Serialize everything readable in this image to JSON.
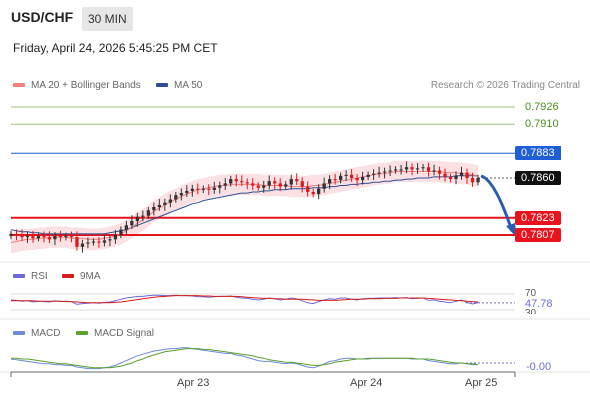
{
  "header": {
    "symbol": "USD/CHF",
    "interval": "30 MIN",
    "datetime": "Friday, April 24, 2026 5:45:25 PM CET"
  },
  "legend": {
    "ma20": "MA 20 + Bollinger Bands",
    "ma50": "MA 50",
    "credit": "Research © 2026 Trading Central"
  },
  "colors": {
    "ma20": "#f08080",
    "ma50": "#2f4f8f",
    "bollinger_fill": "#fadadd",
    "resistance_green": "#9bc27a",
    "pivot_blue": "#1f5fd6",
    "support_red": "#e8131c",
    "up_candle": "#333333",
    "down_candle": "#d81b1b",
    "rsi": "#6b6bd6",
    "rsi_ma": "#d81b1b",
    "macd": "#6b8bd6",
    "macd_signal": "#5aa02c"
  },
  "price_levels": [
    {
      "value": 0.7926,
      "label": "0.7926",
      "kind": "green"
    },
    {
      "value": 0.791,
      "label": "0.7910",
      "kind": "green"
    },
    {
      "value": 0.7883,
      "label": "0.7883",
      "kind": "blue"
    },
    {
      "value": 0.786,
      "label": "0.7860",
      "kind": "dark"
    },
    {
      "value": 0.7823,
      "label": "0.7823",
      "kind": "red"
    },
    {
      "value": 0.7807,
      "label": "0.7807",
      "kind": "red"
    }
  ],
  "rsi": {
    "label": "RSI",
    "ma_label": "9MA",
    "levels": [
      "70",
      "30"
    ],
    "current": "47.78"
  },
  "macd": {
    "label": "MACD",
    "signal_label": "MACD Signal",
    "current": "-0.00"
  },
  "x_axis": {
    "ticks": [
      "Apr 23",
      "Apr 24",
      "Apr 25"
    ]
  },
  "chart_data": {
    "type": "candlestick",
    "title": "USD/CHF",
    "ylim": [
      0.78,
      0.7935
    ],
    "close": [
      0.7808,
      0.7807,
      0.7805,
      0.7806,
      0.7804,
      0.7806,
      0.7805,
      0.7803,
      0.7806,
      0.7805,
      0.7806,
      0.7805,
      0.7796,
      0.7799,
      0.78,
      0.7801,
      0.78,
      0.7802,
      0.7803,
      0.7807,
      0.7812,
      0.7816,
      0.782,
      0.7824,
      0.7825,
      0.783,
      0.7833,
      0.7835,
      0.7837,
      0.784,
      0.7844,
      0.7846,
      0.7848,
      0.785,
      0.7849,
      0.785,
      0.7849,
      0.7851,
      0.7853,
      0.7855,
      0.7859,
      0.7857,
      0.7856,
      0.7855,
      0.7853,
      0.7851,
      0.7853,
      0.7857,
      0.7855,
      0.7852,
      0.7854,
      0.7859,
      0.7857,
      0.7852,
      0.7847,
      0.7845,
      0.785,
      0.7855,
      0.7859,
      0.7858,
      0.7862,
      0.7863,
      0.786,
      0.7858,
      0.7861,
      0.7863,
      0.7864,
      0.7865,
      0.7866,
      0.7867,
      0.7868,
      0.7868,
      0.787,
      0.7868,
      0.7869,
      0.787,
      0.7866,
      0.7867,
      0.7864,
      0.7861,
      0.7859,
      0.7862,
      0.7865,
      0.786,
      0.7856,
      0.786
    ],
    "ma20": [
      0.78,
      0.7801,
      0.7802,
      0.7803,
      0.7803,
      0.7804,
      0.7804,
      0.7805,
      0.7805,
      0.7805,
      0.7805,
      0.7804,
      0.7804,
      0.7804,
      0.7803,
      0.7803,
      0.7803,
      0.7804,
      0.7805,
      0.7806,
      0.7808,
      0.7811,
      0.7814,
      0.7818,
      0.7821,
      0.7825,
      0.7829,
      0.7832,
      0.7835,
      0.7838,
      0.784,
      0.7843,
      0.7845,
      0.7847,
      0.7849,
      0.785,
      0.7851,
      0.7852,
      0.7853,
      0.7853,
      0.7854,
      0.7854,
      0.7854,
      0.7854,
      0.7854,
      0.7854,
      0.7853,
      0.7853,
      0.7853,
      0.7853,
      0.7853,
      0.7852,
      0.7852,
      0.7852,
      0.7852,
      0.7853,
      0.7853,
      0.7854,
      0.7855,
      0.7856,
      0.7857,
      0.7858,
      0.7859,
      0.786,
      0.7861,
      0.7862,
      0.7863,
      0.7864,
      0.7864,
      0.7865,
      0.7866,
      0.7866,
      0.7866,
      0.7866,
      0.7866,
      0.7866,
      0.7866,
      0.7866,
      0.7866,
      0.7865,
      0.7865,
      0.7865,
      0.7864,
      0.7864,
      0.7863,
      0.7862
    ],
    "ma50": [
      0.7812,
      0.7811,
      0.781,
      0.781,
      0.7809,
      0.7809,
      0.7808,
      0.7808,
      0.7808,
      0.7808,
      0.7808,
      0.7808,
      0.7808,
      0.7808,
      0.7808,
      0.7808,
      0.7808,
      0.7808,
      0.7809,
      0.781,
      0.7811,
      0.7812,
      0.7814,
      0.7816,
      0.7818,
      0.782,
      0.7822,
      0.7824,
      0.7826,
      0.7828,
      0.783,
      0.7832,
      0.7834,
      0.7836,
      0.7837,
      0.7839,
      0.784,
      0.7841,
      0.7842,
      0.7843,
      0.7844,
      0.7845,
      0.7846,
      0.7846,
      0.7847,
      0.7847,
      0.7848,
      0.7848,
      0.7849,
      0.7849,
      0.7849,
      0.785,
      0.785,
      0.785,
      0.785,
      0.7851,
      0.7851,
      0.7851,
      0.7852,
      0.7852,
      0.7853,
      0.7853,
      0.7854,
      0.7854,
      0.7855,
      0.7855,
      0.7856,
      0.7856,
      0.7857,
      0.7857,
      0.7858,
      0.7858,
      0.7859,
      0.7859,
      0.786,
      0.786,
      0.786,
      0.7861,
      0.7861,
      0.7861,
      0.7861,
      0.7862,
      0.7862,
      0.7862,
      0.7862,
      0.7862
    ],
    "bollinger_width": 0.001,
    "rsi_values": [
      55,
      54,
      52,
      53,
      50,
      52,
      51,
      50,
      53,
      51,
      52,
      51,
      44,
      46,
      47,
      48,
      47,
      49,
      50,
      53,
      57,
      60,
      62,
      64,
      64,
      66,
      67,
      67,
      66,
      66,
      67,
      66,
      66,
      65,
      63,
      63,
      62,
      63,
      64,
      64,
      65,
      62,
      60,
      59,
      57,
      55,
      57,
      60,
      58,
      55,
      57,
      60,
      58,
      53,
      48,
      46,
      51,
      55,
      58,
      57,
      60,
      60,
      57,
      55,
      58,
      59,
      59,
      60,
      60,
      60,
      61,
      60,
      61,
      58,
      59,
      60,
      54,
      55,
      52,
      50,
      48,
      52,
      55,
      49,
      45,
      48
    ],
    "rsi_ma_values": [
      53,
      53,
      53,
      53,
      53,
      52,
      52,
      52,
      52,
      52,
      51,
      51,
      50,
      49,
      48,
      48,
      48,
      48,
      48,
      49,
      50,
      52,
      54,
      56,
      58,
      60,
      62,
      63,
      64,
      65,
      66,
      66,
      66,
      66,
      66,
      65,
      65,
      64,
      64,
      64,
      64,
      64,
      63,
      62,
      61,
      60,
      59,
      59,
      58,
      58,
      57,
      57,
      57,
      57,
      56,
      55,
      54,
      54,
      54,
      54,
      55,
      56,
      57,
      57,
      57,
      58,
      58,
      58,
      59,
      59,
      59,
      60,
      60,
      60,
      60,
      60,
      59,
      58,
      57,
      56,
      55,
      54,
      53,
      52,
      51,
      50
    ],
    "macd_values": [
      0.5,
      0.4,
      0.3,
      0.2,
      0.1,
      0.0,
      -0.1,
      -0.1,
      -0.2,
      -0.2,
      -0.3,
      -0.3,
      -0.5,
      -0.6,
      -0.7,
      -0.7,
      -0.7,
      -0.6,
      -0.5,
      -0.3,
      0.0,
      0.3,
      0.6,
      0.9,
      1.1,
      1.3,
      1.5,
      1.6,
      1.7,
      1.8,
      1.8,
      1.9,
      1.9,
      1.8,
      1.7,
      1.6,
      1.5,
      1.4,
      1.3,
      1.2,
      1.2,
      1.0,
      0.9,
      0.7,
      0.5,
      0.3,
      0.2,
      0.2,
      0.1,
      0.0,
      -0.1,
      0.0,
      -0.1,
      -0.3,
      -0.5,
      -0.6,
      -0.4,
      -0.1,
      0.2,
      0.3,
      0.5,
      0.6,
      0.6,
      0.5,
      0.5,
      0.6,
      0.6,
      0.6,
      0.6,
      0.6,
      0.6,
      0.6,
      0.6,
      0.5,
      0.5,
      0.5,
      0.3,
      0.2,
      0.1,
      0.0,
      -0.1,
      -0.1,
      0.0,
      -0.1,
      -0.2,
      -0.2
    ],
    "macd_signal_values": [
      0.6,
      0.6,
      0.5,
      0.5,
      0.4,
      0.3,
      0.2,
      0.1,
      0.0,
      -0.1,
      -0.1,
      -0.2,
      -0.3,
      -0.4,
      -0.5,
      -0.6,
      -0.6,
      -0.6,
      -0.6,
      -0.5,
      -0.4,
      -0.2,
      0.0,
      0.3,
      0.5,
      0.8,
      1.0,
      1.2,
      1.4,
      1.5,
      1.6,
      1.7,
      1.8,
      1.8,
      1.8,
      1.7,
      1.7,
      1.6,
      1.5,
      1.4,
      1.3,
      1.2,
      1.1,
      1.0,
      0.9,
      0.7,
      0.6,
      0.4,
      0.3,
      0.2,
      0.1,
      0.1,
      0.0,
      -0.1,
      -0.2,
      -0.3,
      -0.3,
      -0.2,
      -0.1,
      0.1,
      0.2,
      0.3,
      0.4,
      0.5,
      0.5,
      0.5,
      0.6,
      0.6,
      0.6,
      0.6,
      0.6,
      0.6,
      0.6,
      0.6,
      0.5,
      0.5,
      0.5,
      0.4,
      0.3,
      0.2,
      0.1,
      0.0,
      0.0,
      -0.1,
      -0.1,
      -0.2
    ],
    "forecast": {
      "from": 0.786,
      "to": 0.7807
    }
  }
}
